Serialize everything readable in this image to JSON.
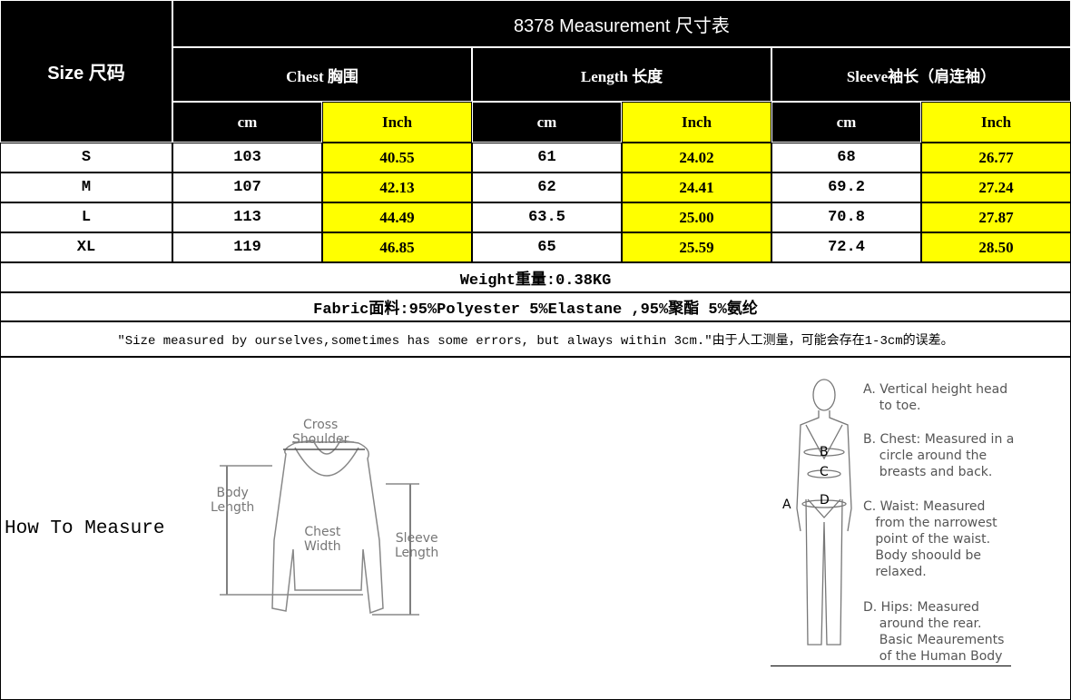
{
  "title": "8378 Measurement 尺寸表",
  "size_header": "Size 尺码",
  "groups": [
    "Chest 胸围",
    "Length 长度",
    "Sleeve袖长（肩连袖）"
  ],
  "units": [
    "cm",
    "Inch",
    "cm",
    "Inch",
    "cm",
    "Inch"
  ],
  "rows": [
    {
      "size": "S",
      "values": [
        "103",
        "40.55",
        "61",
        "24.02",
        "68",
        "26.77"
      ]
    },
    {
      "size": "M",
      "values": [
        "107",
        "42.13",
        "62",
        "24.41",
        "69.2",
        "27.24"
      ]
    },
    {
      "size": "L",
      "values": [
        "113",
        "44.49",
        "63.5",
        "25.00",
        "70.8",
        "27.87"
      ]
    },
    {
      "size": "XL",
      "values": [
        "119",
        "46.85",
        "65",
        "25.59",
        "72.4",
        "28.50"
      ]
    }
  ],
  "weight": "Weight重量:0.38KG",
  "fabric": "Fabric面料:95%Polyester 5%Elastane ,95%聚酯 5%氨纶",
  "note": "\"Size measured by ourselves,sometimes has some errors, but always within 3cm.\"由于人工测量，可能会存在1-3cm的误差。",
  "how_to_measure": "How To Measure",
  "sweater_labels": {
    "cross_shoulder": "Cross\nShoulder",
    "body_length": "Body\nLength",
    "chest_width": "Chest\nWidth",
    "sleeve_length": "Sleeve\nLength"
  },
  "body_markers": [
    "A",
    "B",
    "C",
    "D"
  ],
  "body_notes": [
    "A. Vertical height head\n    to toe.",
    "B. Chest: Measured in a\n    circle around the\n    breasts and back.",
    "C. Waist: Measured\n   from the narrowest\n   point of the waist.\n   Body shoould be\n   relaxed.",
    "D. Hips: Measured\n    around the rear.\n    Basic Meaurements\n    of the Human Body"
  ],
  "colors": {
    "header": "#000000",
    "inch_highlight": "#ffff00"
  }
}
